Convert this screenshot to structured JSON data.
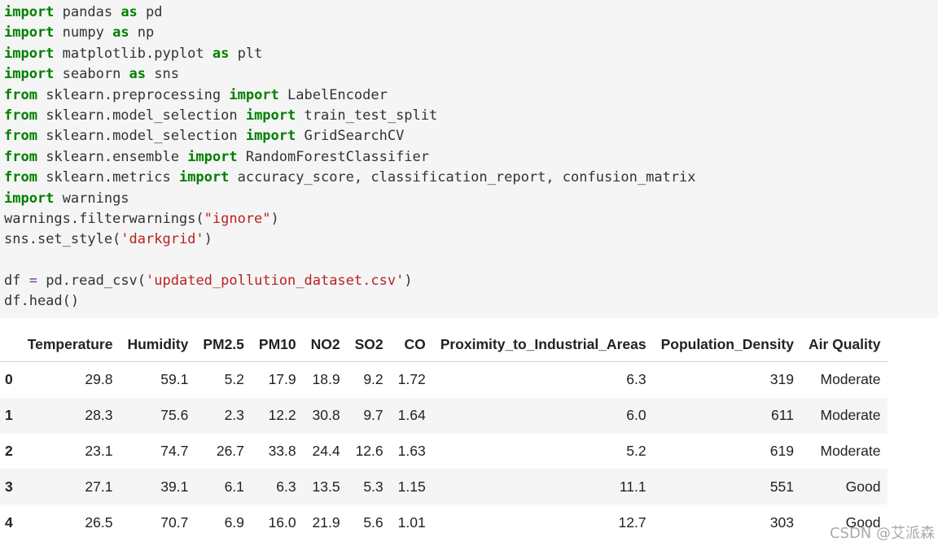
{
  "code_lines": [
    [
      {
        "t": "import",
        "c": "kw"
      },
      {
        "t": " pandas "
      },
      {
        "t": "as",
        "c": "kw"
      },
      {
        "t": " pd"
      }
    ],
    [
      {
        "t": "import",
        "c": "kw"
      },
      {
        "t": " numpy "
      },
      {
        "t": "as",
        "c": "kw"
      },
      {
        "t": " np"
      }
    ],
    [
      {
        "t": "import",
        "c": "kw"
      },
      {
        "t": " matplotlib.pyplot "
      },
      {
        "t": "as",
        "c": "kw"
      },
      {
        "t": " plt"
      }
    ],
    [
      {
        "t": "import",
        "c": "kw"
      },
      {
        "t": " seaborn "
      },
      {
        "t": "as",
        "c": "kw"
      },
      {
        "t": " sns"
      }
    ],
    [
      {
        "t": "from",
        "c": "kw"
      },
      {
        "t": " sklearn.preprocessing "
      },
      {
        "t": "import",
        "c": "kw"
      },
      {
        "t": " LabelEncoder"
      }
    ],
    [
      {
        "t": "from",
        "c": "kw"
      },
      {
        "t": " sklearn.model_selection "
      },
      {
        "t": "import",
        "c": "kw"
      },
      {
        "t": " train_test_split"
      }
    ],
    [
      {
        "t": "from",
        "c": "kw"
      },
      {
        "t": " sklearn.model_selection "
      },
      {
        "t": "import",
        "c": "kw"
      },
      {
        "t": " GridSearchCV"
      }
    ],
    [
      {
        "t": "from",
        "c": "kw"
      },
      {
        "t": " sklearn.ensemble "
      },
      {
        "t": "import",
        "c": "kw"
      },
      {
        "t": " RandomForestClassifier"
      }
    ],
    [
      {
        "t": "from",
        "c": "kw"
      },
      {
        "t": " sklearn.metrics "
      },
      {
        "t": "import",
        "c": "kw"
      },
      {
        "t": " accuracy_score, classification_report, confusion_matrix"
      }
    ],
    [
      {
        "t": "import",
        "c": "kw"
      },
      {
        "t": " warnings"
      }
    ],
    [
      {
        "t": "warnings.filterwarnings("
      },
      {
        "t": "\"ignore\"",
        "c": "str"
      },
      {
        "t": ")"
      }
    ],
    [
      {
        "t": "sns.set_style("
      },
      {
        "t": "'darkgrid'",
        "c": "str"
      },
      {
        "t": ")"
      }
    ],
    [],
    [
      {
        "t": "df "
      },
      {
        "t": "=",
        "c": "op"
      },
      {
        "t": " pd.read_csv("
      },
      {
        "t": "'updated_pollution_dataset.csv'",
        "c": "str"
      },
      {
        "t": ")"
      }
    ],
    [
      {
        "t": "df.head()"
      }
    ]
  ],
  "table": {
    "columns": [
      "",
      "Temperature",
      "Humidity",
      "PM2.5",
      "PM10",
      "NO2",
      "SO2",
      "CO",
      "Proximity_to_Industrial_Areas",
      "Population_Density",
      "Air Quality"
    ],
    "rows": [
      [
        "0",
        "29.8",
        "59.1",
        "5.2",
        "17.9",
        "18.9",
        "9.2",
        "1.72",
        "6.3",
        "319",
        "Moderate"
      ],
      [
        "1",
        "28.3",
        "75.6",
        "2.3",
        "12.2",
        "30.8",
        "9.7",
        "1.64",
        "6.0",
        "611",
        "Moderate"
      ],
      [
        "2",
        "23.1",
        "74.7",
        "26.7",
        "33.8",
        "24.4",
        "12.6",
        "1.63",
        "5.2",
        "619",
        "Moderate"
      ],
      [
        "3",
        "27.1",
        "39.1",
        "6.1",
        "6.3",
        "13.5",
        "5.3",
        "1.15",
        "11.1",
        "551",
        "Good"
      ],
      [
        "4",
        "26.5",
        "70.7",
        "6.9",
        "16.0",
        "21.9",
        "5.6",
        "1.01",
        "12.7",
        "303",
        "Good"
      ]
    ]
  },
  "watermark": "CSDN @艾派森"
}
